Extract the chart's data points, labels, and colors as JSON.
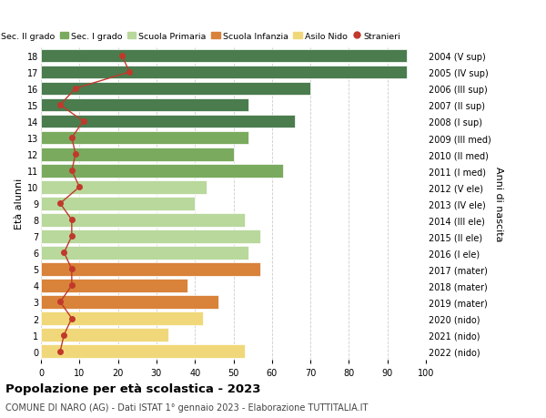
{
  "ages": [
    18,
    17,
    16,
    15,
    14,
    13,
    12,
    11,
    10,
    9,
    8,
    7,
    6,
    5,
    4,
    3,
    2,
    1,
    0
  ],
  "right_labels": [
    "2004 (V sup)",
    "2005 (IV sup)",
    "2006 (III sup)",
    "2007 (II sup)",
    "2008 (I sup)",
    "2009 (III med)",
    "2010 (II med)",
    "2011 (I med)",
    "2012 (V ele)",
    "2013 (IV ele)",
    "2014 (III ele)",
    "2015 (II ele)",
    "2016 (I ele)",
    "2017 (mater)",
    "2018 (mater)",
    "2019 (mater)",
    "2020 (nido)",
    "2021 (nido)",
    "2022 (nido)"
  ],
  "bar_values": [
    95,
    95,
    70,
    54,
    66,
    54,
    50,
    63,
    43,
    40,
    53,
    57,
    54,
    57,
    38,
    46,
    42,
    33,
    53
  ],
  "bar_colors": [
    "#4a7c4e",
    "#4a7c4e",
    "#4a7c4e",
    "#4a7c4e",
    "#4a7c4e",
    "#7aaa5e",
    "#7aaa5e",
    "#7aaa5e",
    "#b8d89c",
    "#b8d89c",
    "#b8d89c",
    "#b8d89c",
    "#b8d89c",
    "#d9823a",
    "#d9823a",
    "#d9823a",
    "#f0d87a",
    "#f0d87a",
    "#f0d87a"
  ],
  "stranieri_values": [
    21,
    23,
    9,
    5,
    11,
    8,
    9,
    8,
    10,
    5,
    8,
    8,
    6,
    8,
    8,
    5,
    8,
    6,
    5
  ],
  "legend_labels": [
    "Sec. II grado",
    "Sec. I grado",
    "Scuola Primaria",
    "Scuola Infanzia",
    "Asilo Nido",
    "Stranieri"
  ],
  "legend_colors": [
    "#4a7c4e",
    "#7aaa5e",
    "#b8d89c",
    "#d9823a",
    "#f0d87a",
    "#c0392b"
  ],
  "ylabel_left": "Età alunni",
  "ylabel_right": "Anni di nascita",
  "title": "Popolazione per età scolastica - 2023",
  "subtitle": "COMUNE DI NARO (AG) - Dati ISTAT 1° gennaio 2023 - Elaborazione TUTTITALIA.IT",
  "xlim": [
    0,
    100
  ],
  "stranieri_color": "#c0392b",
  "bg_color": "#ffffff",
  "grid_color": "#cccccc"
}
